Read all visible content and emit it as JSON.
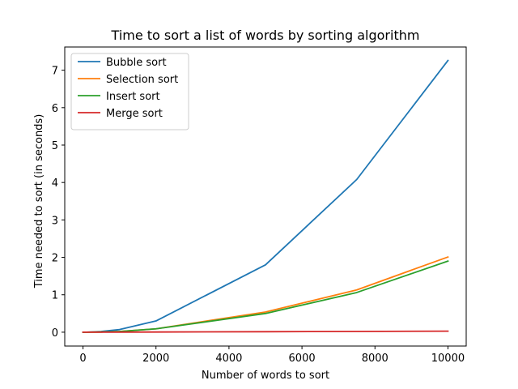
{
  "chart_data": {
    "type": "line",
    "title": "Time to sort a list of words by sorting algorithm",
    "xlabel": "Number of words to sort",
    "ylabel": "Time needed to sort (in seconds)",
    "xlim": [
      -500,
      10500
    ],
    "ylim": [
      -0.37,
      7.62
    ],
    "x_ticks": [
      0,
      2000,
      4000,
      6000,
      8000,
      10000
    ],
    "y_ticks": [
      0,
      1,
      2,
      3,
      4,
      5,
      6,
      7
    ],
    "x_tick_labels": [
      "0",
      "2000",
      "4000",
      "6000",
      "8000",
      "10000"
    ],
    "y_tick_labels": [
      "0",
      "1",
      "2",
      "3",
      "4",
      "5",
      "6",
      "7"
    ],
    "grid": false,
    "legend_position": "top-left",
    "series": [
      {
        "name": "Bubble sort",
        "color": "#1f77b4",
        "x": [
          0,
          100,
          500,
          1000,
          2000,
          5000,
          7500,
          10000
        ],
        "y": [
          0.0,
          0.001,
          0.02,
          0.07,
          0.3,
          1.8,
          4.08,
          7.26
        ]
      },
      {
        "name": "Selection sort",
        "color": "#ff7f0e",
        "x": [
          0,
          100,
          500,
          1000,
          2000,
          5000,
          7500,
          10000
        ],
        "y": [
          0.0,
          0.0,
          0.005,
          0.02,
          0.09,
          0.54,
          1.13,
          2.01
        ]
      },
      {
        "name": "Insert sort",
        "color": "#2ca02c",
        "x": [
          0,
          100,
          500,
          1000,
          2000,
          5000,
          7500,
          10000
        ],
        "y": [
          0.0,
          0.0,
          0.005,
          0.02,
          0.09,
          0.5,
          1.06,
          1.9
        ]
      },
      {
        "name": "Merge sort",
        "color": "#d62728",
        "x": [
          0,
          100,
          500,
          1000,
          2000,
          5000,
          7500,
          10000
        ],
        "y": [
          0.0,
          0.0,
          0.001,
          0.002,
          0.005,
          0.013,
          0.02,
          0.028
        ]
      }
    ]
  }
}
